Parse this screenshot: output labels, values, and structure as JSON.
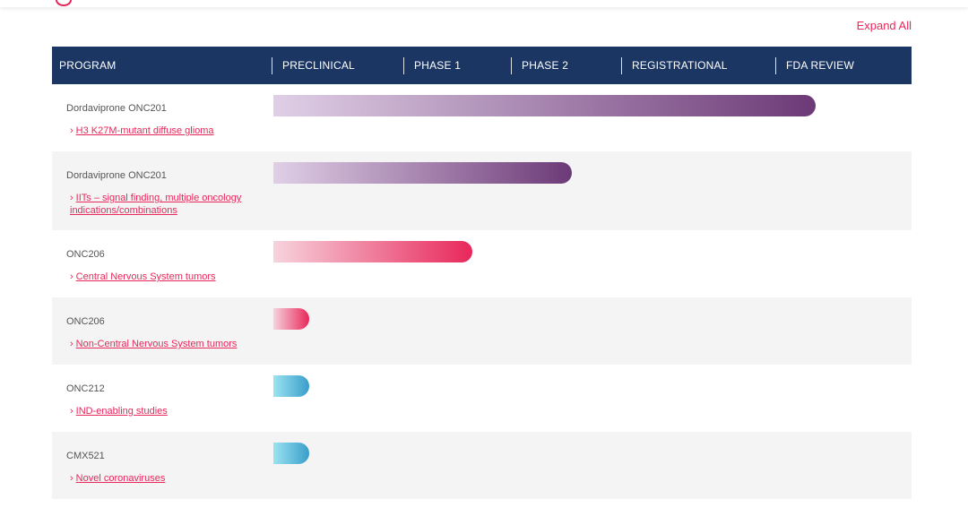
{
  "header": {
    "expand_all": "Expand All"
  },
  "table": {
    "columns": [
      "PROGRAM",
      "PRECLINICAL",
      "PHASE 1",
      "PHASE 2",
      "REGISTRATIONAL",
      "FDA REVIEW"
    ],
    "rows": [
      {
        "name": "Dordaviprone ONC201",
        "indication": "H3 K27M-mutant diffuse glioma",
        "stage_progress": 0.6,
        "bar_color": "purple"
      },
      {
        "name": "Dordaviprone ONC201",
        "indication": "IITs – signal finding, multiple oncology indications/combinations",
        "stage_progress": 0.33,
        "bar_color": "purple"
      },
      {
        "name": "ONC206",
        "indication": "Central Nervous System tumors",
        "stage_progress": 0.22,
        "bar_color": "red"
      },
      {
        "name": "ONC206",
        "indication": "Non-Central Nervous System tumors",
        "stage_progress": 0.04,
        "bar_color": "red"
      },
      {
        "name": "ONC212",
        "indication": "IND-enabling studies",
        "stage_progress": 0.04,
        "bar_color": "blue"
      },
      {
        "name": "CMX521",
        "indication": "Novel coronaviruses",
        "stage_progress": 0.04,
        "bar_color": "blue"
      }
    ]
  },
  "colors": {
    "header_bg": "#1c3664",
    "accent": "#e8275a",
    "purple": "#6c3a77",
    "blue": "#3a9ec9"
  },
  "icons": {
    "link_chevron": "chevron-right-icon"
  }
}
